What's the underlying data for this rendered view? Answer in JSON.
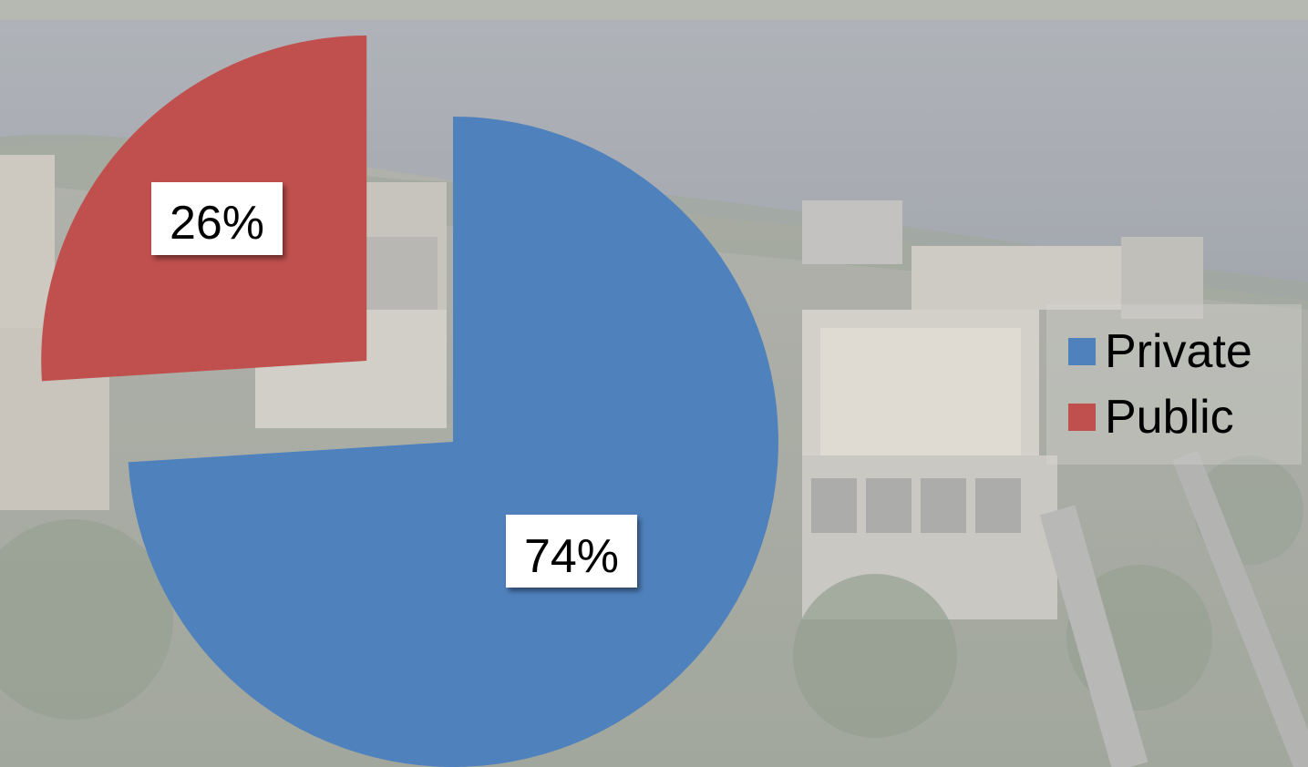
{
  "chart_data": {
    "type": "pie",
    "exploded": true,
    "slices": [
      {
        "label": "Private",
        "value": 74,
        "data_label": "74%",
        "color": "#4f81bd"
      },
      {
        "label": "Public",
        "value": 26,
        "data_label": "26%",
        "color": "#c0504d"
      }
    ],
    "legend": {
      "position": "right",
      "entries": [
        "Private",
        "Public"
      ]
    },
    "background": "aerial-city-photo"
  }
}
